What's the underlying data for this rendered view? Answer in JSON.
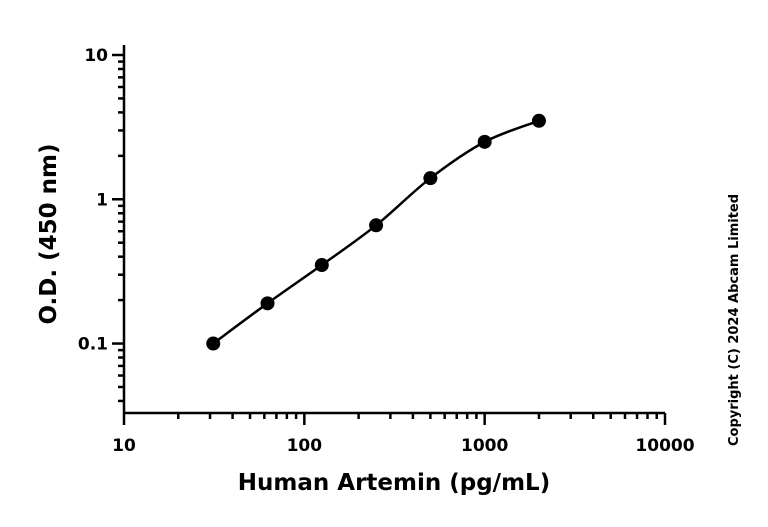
{
  "chart_data": {
    "type": "scatter",
    "x_label": "Human Artemin (pg/mL)",
    "y_label": "O.D. (450 nm)",
    "annotation": "Copyright (C) 2024 Abcam Limited",
    "x": [
      31.25,
      62.5,
      125,
      250,
      500,
      1000,
      2000
    ],
    "values": [
      0.1,
      0.19,
      0.35,
      0.66,
      1.4,
      2.5,
      3.5
    ],
    "color": "#000000",
    "xscale": "log",
    "yscale": "log",
    "xlim": [
      10,
      10000
    ],
    "xticks": [
      10,
      100,
      1000,
      10000
    ],
    "ylim": [
      0.033,
      10
    ],
    "yticks": [
      0.1,
      1,
      10
    ],
    "grid": false
  }
}
